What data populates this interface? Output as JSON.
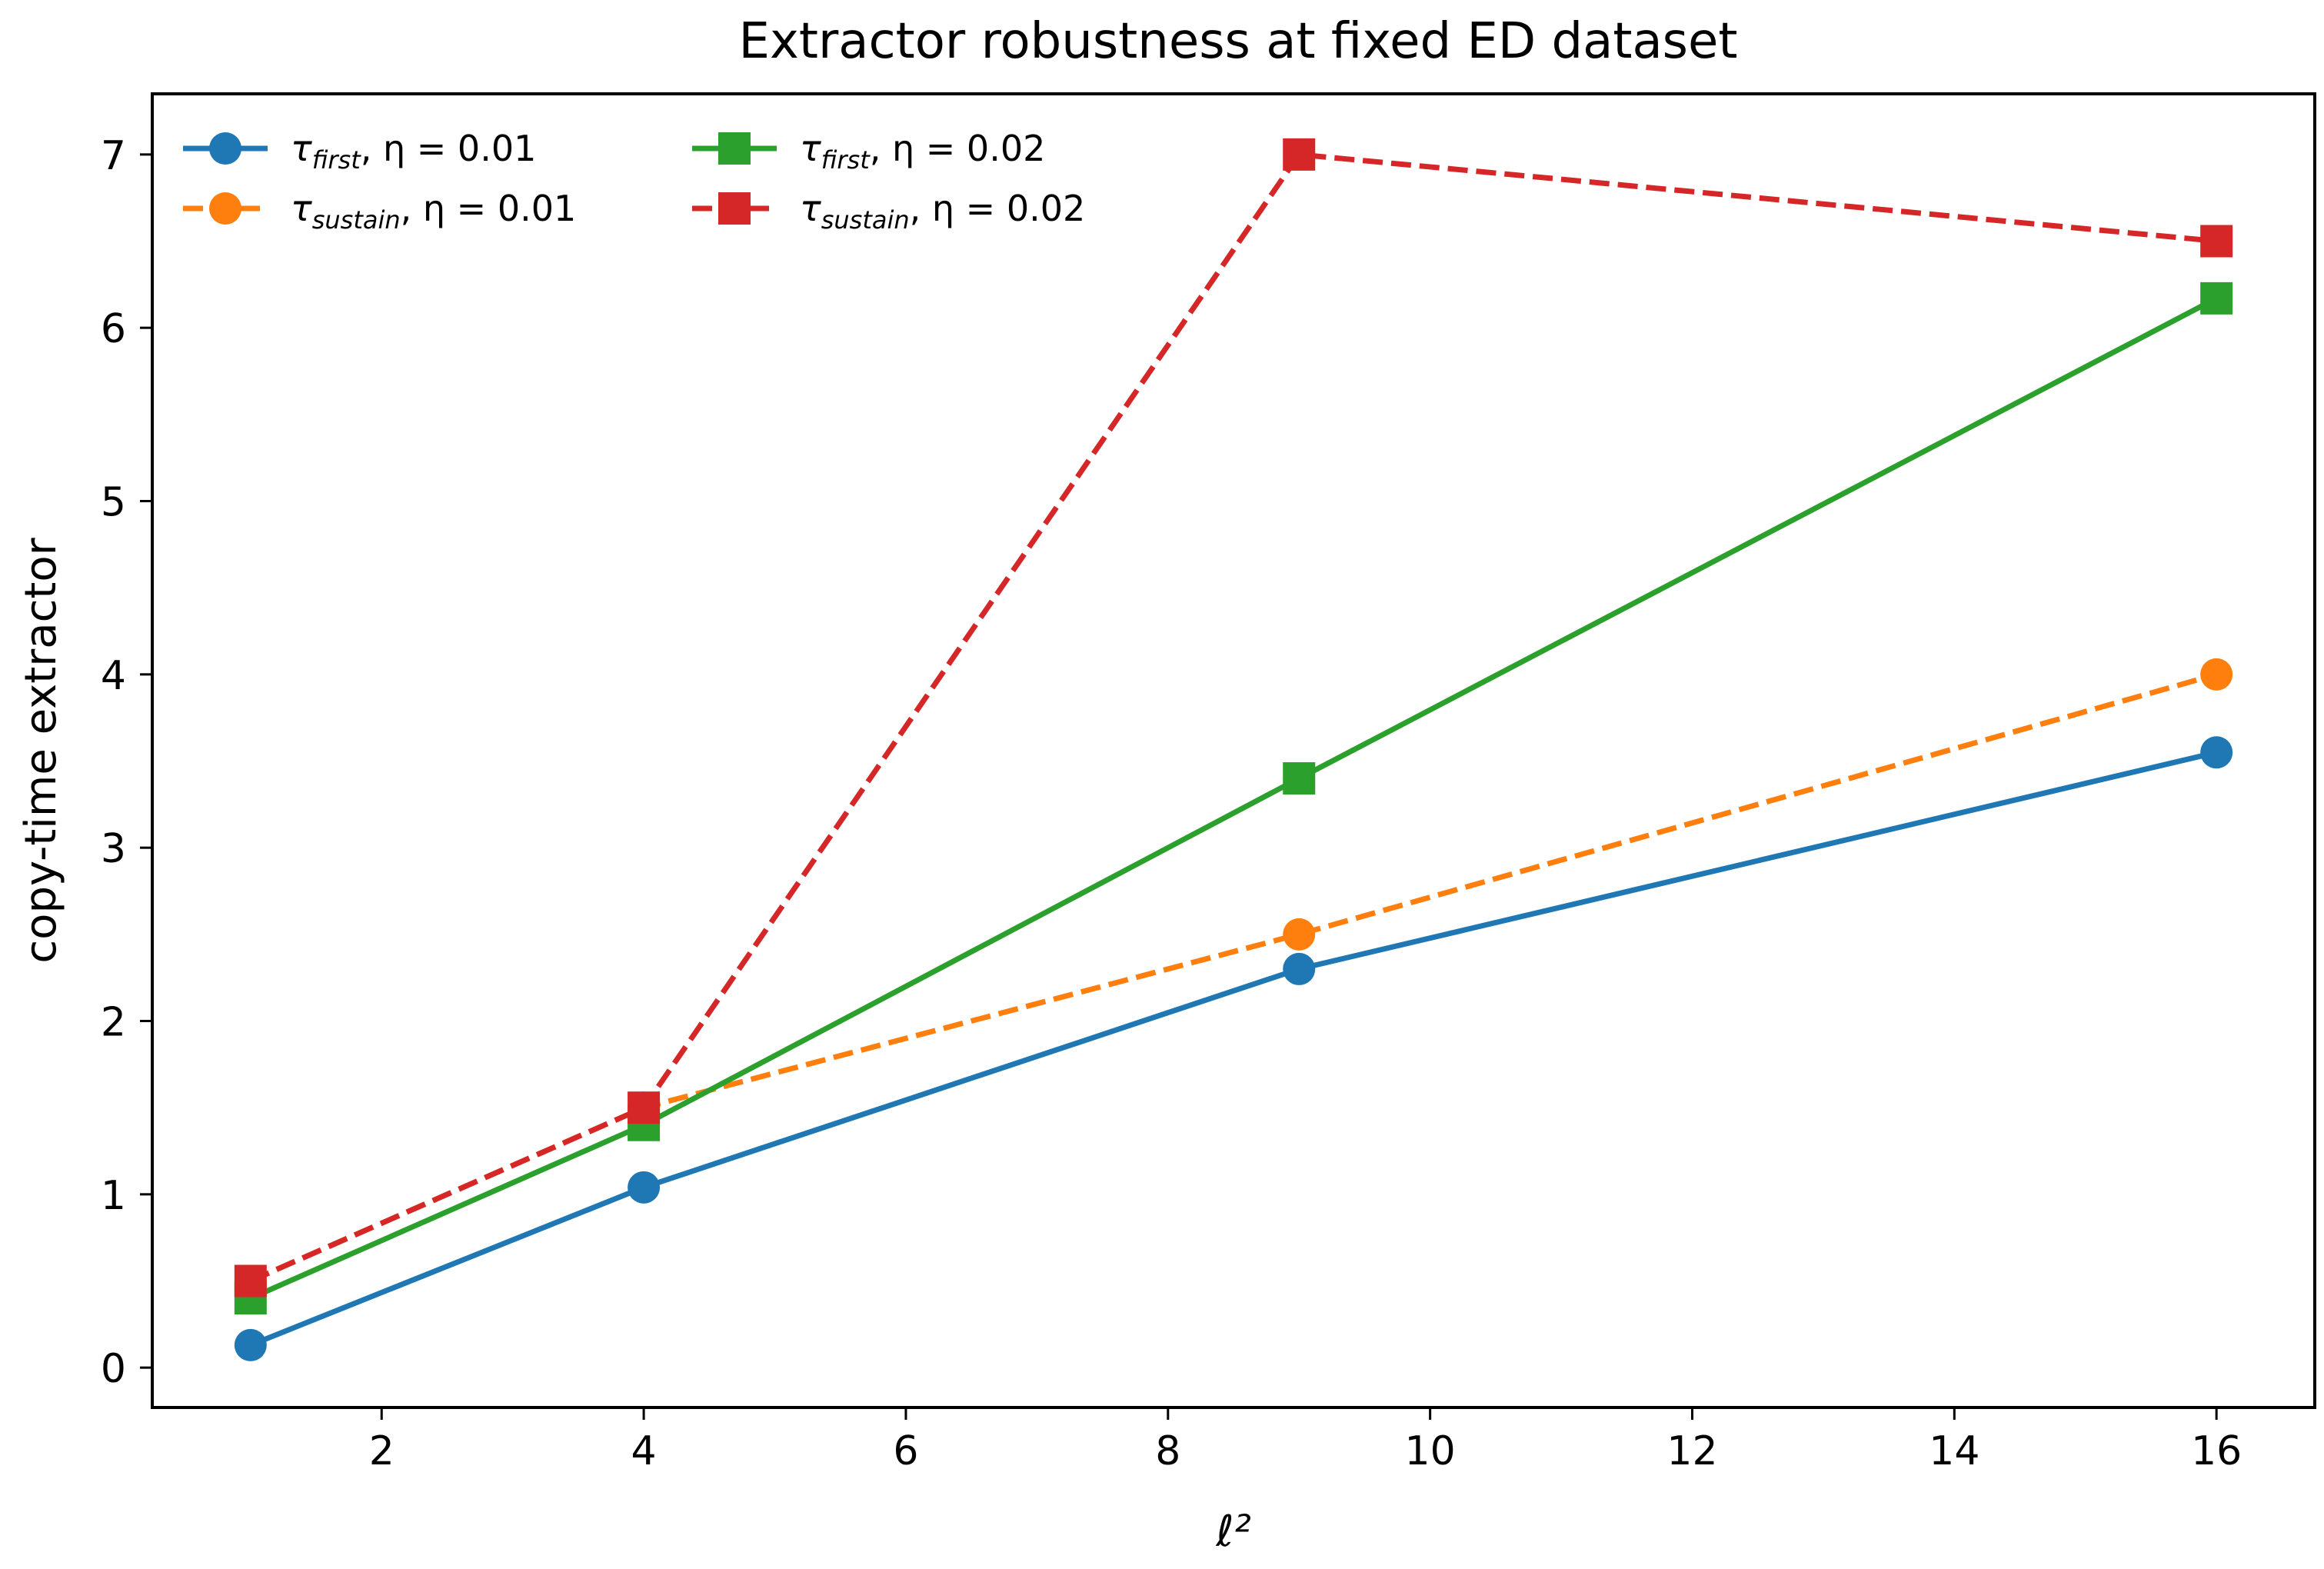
{
  "chart_data": {
    "type": "line",
    "title": "Extractor robustness at fixed ED dataset",
    "xlabel": "ℓ²",
    "ylabel": "copy-time extractor",
    "x": [
      1,
      4,
      9,
      16
    ],
    "xlim": [
      0.25,
      16.75
    ],
    "ylim": [
      -0.23,
      7.35
    ],
    "xticks": [
      2,
      4,
      6,
      8,
      10,
      12,
      14,
      16
    ],
    "yticks": [
      0,
      1,
      2,
      3,
      4,
      5,
      6,
      7
    ],
    "grid": false,
    "legend_position": "top-left",
    "series": [
      {
        "name": "τfirst, η = 0.01",
        "legend_main": "τ",
        "legend_sub": "first",
        "legend_rest": ", η = 0.01",
        "values": [
          0.13,
          1.04,
          2.3,
          3.55
        ],
        "color": "#1f77b4",
        "marker": "circle",
        "linestyle": "solid"
      },
      {
        "name": "τsustain, η = 0.01",
        "legend_main": "τ",
        "legend_sub": "sustain",
        "legend_rest": ", η = 0.01",
        "values": [
          0.5,
          1.5,
          2.5,
          4.0
        ],
        "color": "#ff7f0e",
        "marker": "circle",
        "linestyle": "dashed"
      },
      {
        "name": "τfirst, η = 0.02",
        "legend_main": "τ",
        "legend_sub": "first",
        "legend_rest": ", η = 0.02",
        "values": [
          0.4,
          1.4,
          3.4,
          6.17
        ],
        "color": "#2ca02c",
        "marker": "square",
        "linestyle": "solid"
      },
      {
        "name": "τsustain, η = 0.02",
        "legend_main": "τ",
        "legend_sub": "sustain",
        "legend_rest": ", η = 0.02",
        "values": [
          0.5,
          1.5,
          7.0,
          6.5
        ],
        "color": "#d62728",
        "marker": "square",
        "linestyle": "dashed"
      }
    ]
  }
}
